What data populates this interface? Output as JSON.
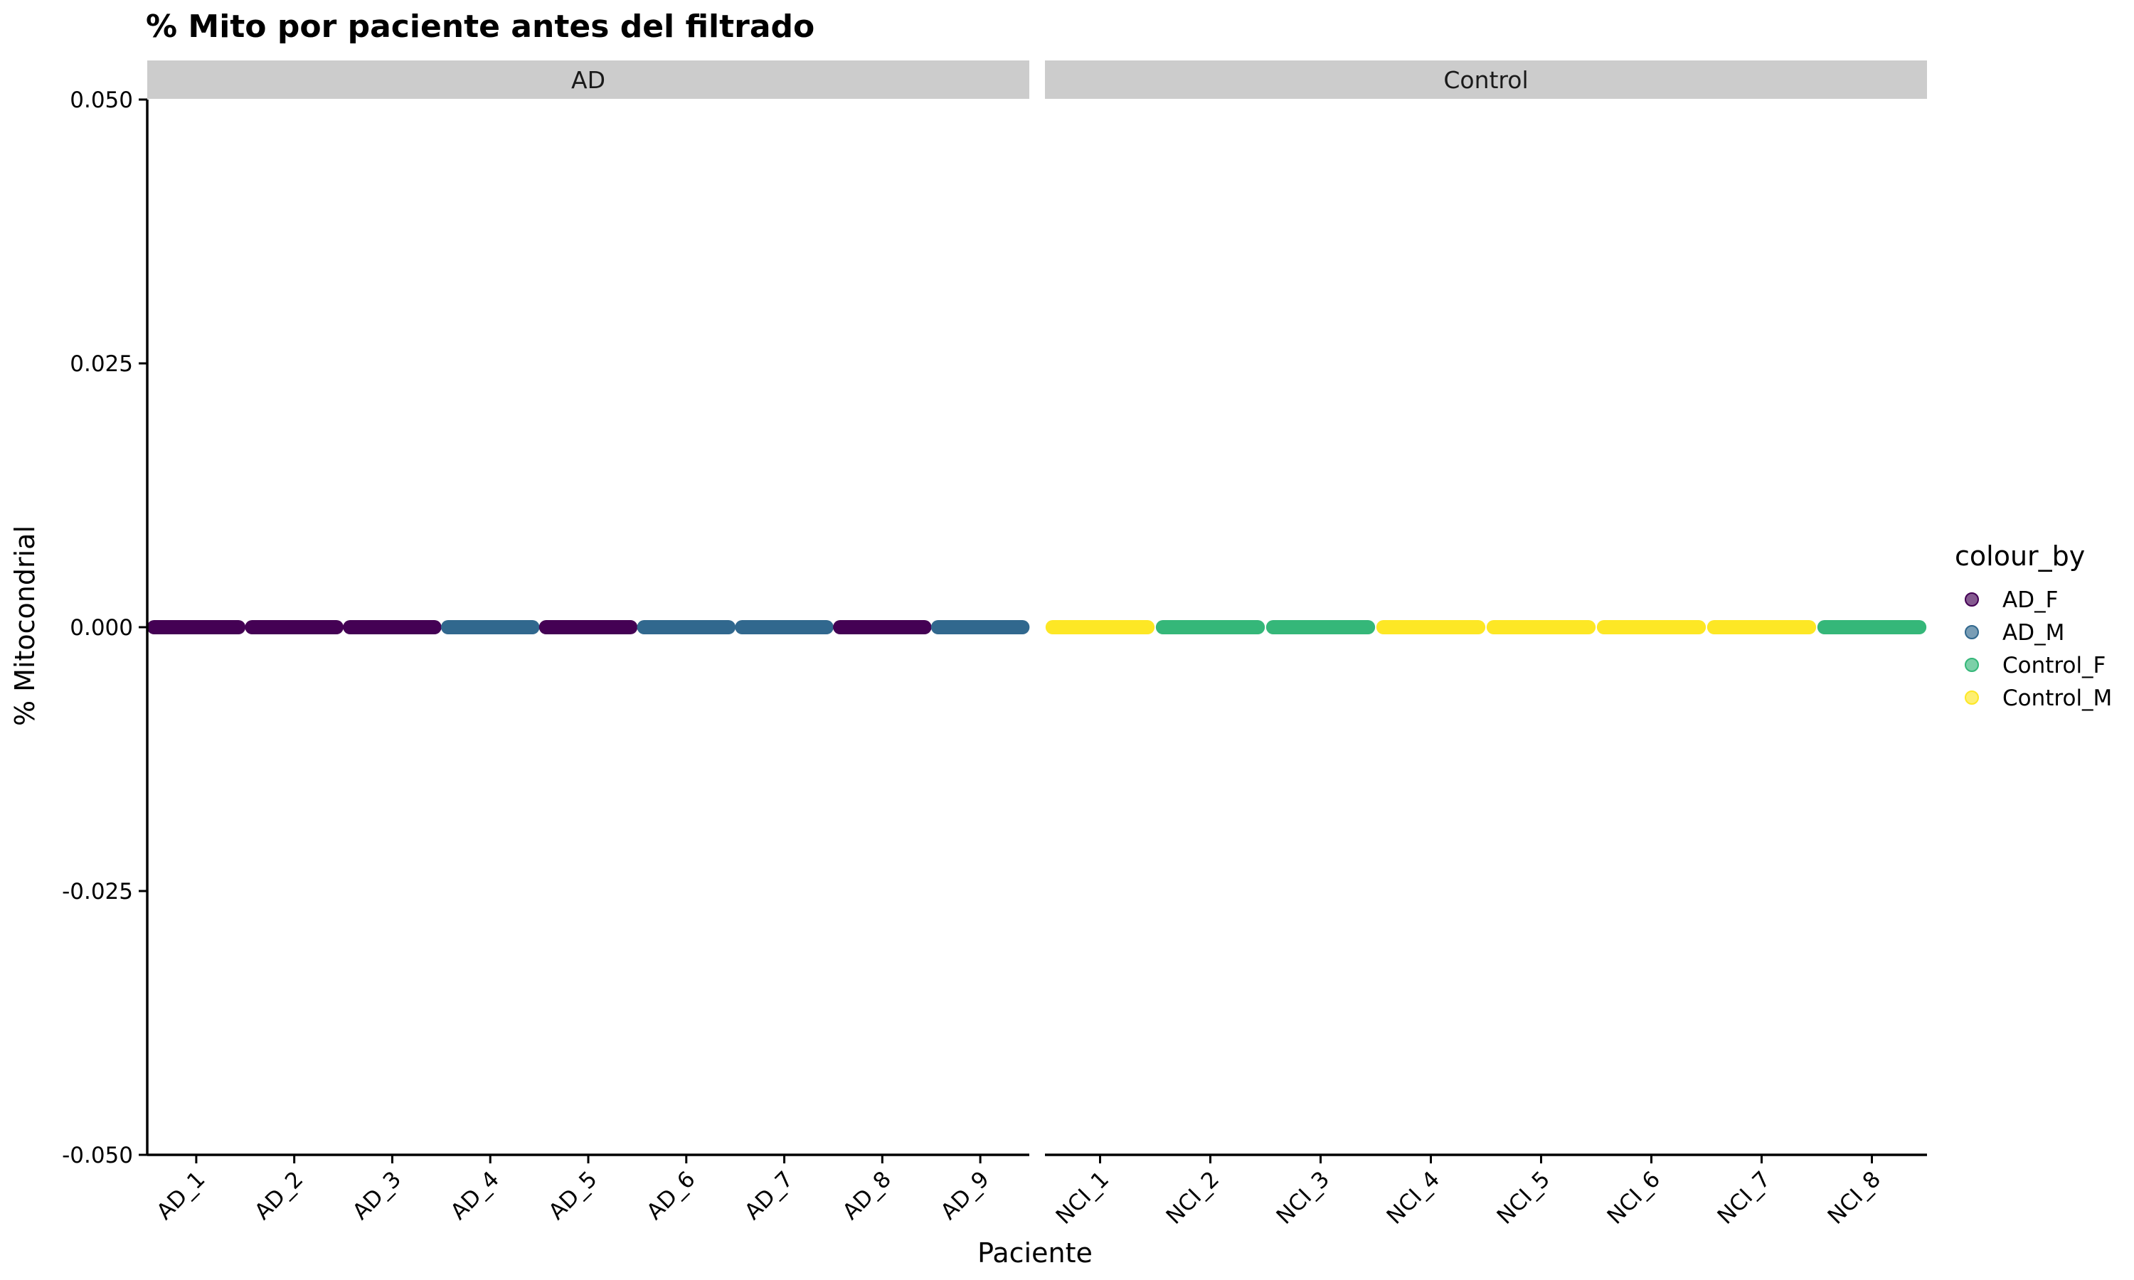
{
  "chart_data": {
    "type": "scatter",
    "title": "% Mito por paciente antes del filtrado",
    "xlabel": "Paciente",
    "ylabel": "% Mitocondrial",
    "ylim": [
      -0.05,
      0.05
    ],
    "yticks": [
      -0.05,
      -0.025,
      0,
      0.025,
      0.05
    ],
    "ytick_labels": [
      "-0.050",
      "-0.025",
      "0.000",
      "0.025",
      "0.050"
    ],
    "grid": false,
    "legend": {
      "title": "colour_by",
      "placement": "right",
      "entries": [
        {
          "name": "AD_F",
          "color": "#440154"
        },
        {
          "name": "AD_M",
          "color": "#31688E"
        },
        {
          "name": "Control_F",
          "color": "#35B779"
        },
        {
          "name": "Control_M",
          "color": "#FDE725"
        }
      ]
    },
    "facets": [
      {
        "label": "AD",
        "categories": [
          "AD_1",
          "AD_2",
          "AD_3",
          "AD_4",
          "AD_5",
          "AD_6",
          "AD_7",
          "AD_8",
          "AD_9"
        ],
        "groups": [
          "AD_F",
          "AD_F",
          "AD_F",
          "AD_M",
          "AD_F",
          "AD_M",
          "AD_M",
          "AD_F",
          "AD_M"
        ],
        "values": [
          0,
          0,
          0,
          0,
          0,
          0,
          0,
          0,
          0
        ]
      },
      {
        "label": "Control",
        "categories": [
          "NCI_1",
          "NCI_2",
          "NCI_3",
          "NCI_4",
          "NCI_5",
          "NCI_6",
          "NCI_7",
          "NCI_8"
        ],
        "groups": [
          "Control_M",
          "Control_F",
          "Control_F",
          "Control_M",
          "Control_M",
          "Control_M",
          "Control_M",
          "Control_F"
        ],
        "values": [
          0,
          0,
          0,
          0,
          0,
          0,
          0,
          0
        ]
      }
    ]
  }
}
